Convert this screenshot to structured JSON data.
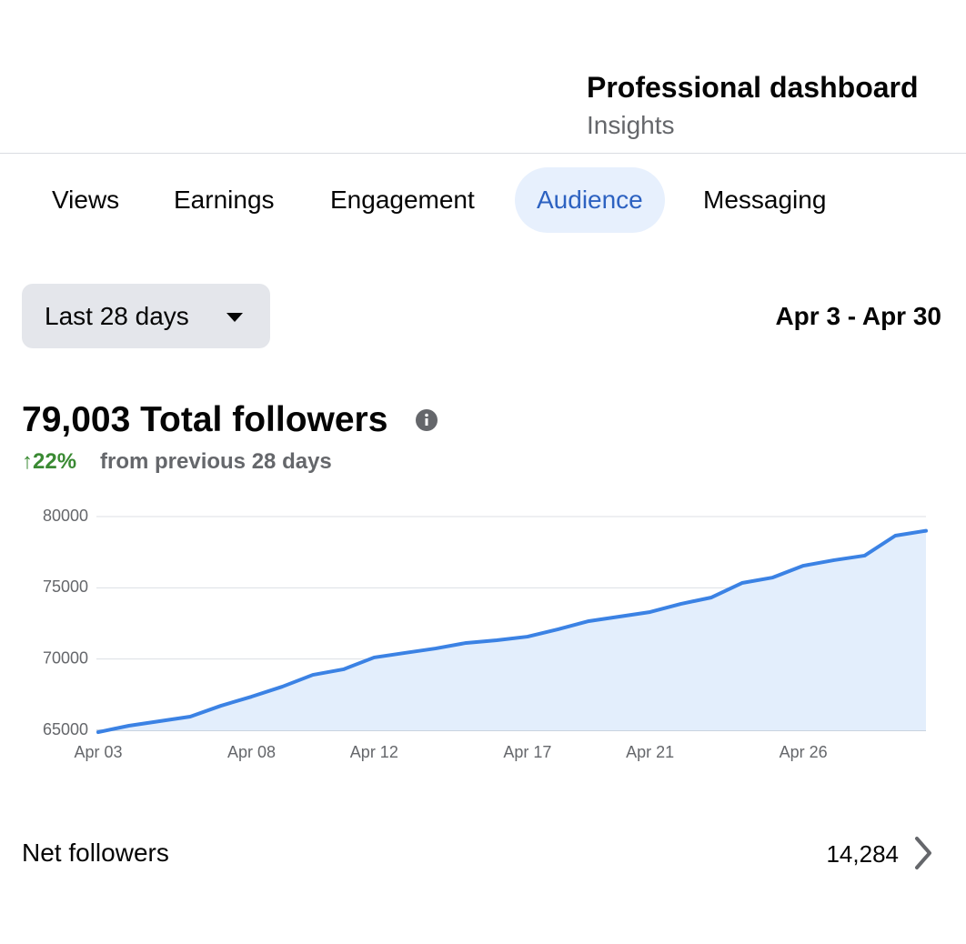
{
  "header": {
    "title": "Professional dashboard",
    "subtitle": "Insights"
  },
  "tabs": [
    "Views",
    "Earnings",
    "Engagement",
    "Audience",
    "Messaging"
  ],
  "active_tab": 3,
  "filter": {
    "range": "Last 28 days",
    "dates": "Apr 3 - Apr 30"
  },
  "summary": {
    "total": "79,003 Total followers",
    "change": "↑22%",
    "change_text": "from previous 28 days"
  },
  "chart_data": {
    "type": "area",
    "categories": [
      "Apr 03",
      null,
      null,
      null,
      null,
      "Apr 08",
      null,
      null,
      null,
      "Apr 12",
      null,
      null,
      null,
      null,
      "Apr 17",
      null,
      null,
      null,
      "Apr 21",
      null,
      null,
      null,
      null,
      "Apr 26",
      null,
      null,
      null,
      null
    ],
    "values": [
      64870,
      65320,
      65640,
      65960,
      66720,
      67360,
      68060,
      68890,
      69280,
      70110,
      70430,
      70740,
      71130,
      71320,
      71570,
      72090,
      72660,
      72980,
      73300,
      73870,
      74320,
      75340,
      75720,
      76550,
      76940,
      77260,
      78660,
      79003
    ],
    "color": "#3b82e4",
    "fill": "#e3eefc",
    "ylim": [
      65000,
      80000
    ],
    "yticks": [
      65000,
      70000,
      75000,
      80000
    ],
    "grid": true
  },
  "net_followers": {
    "label": "Net followers",
    "value": "14,284"
  }
}
